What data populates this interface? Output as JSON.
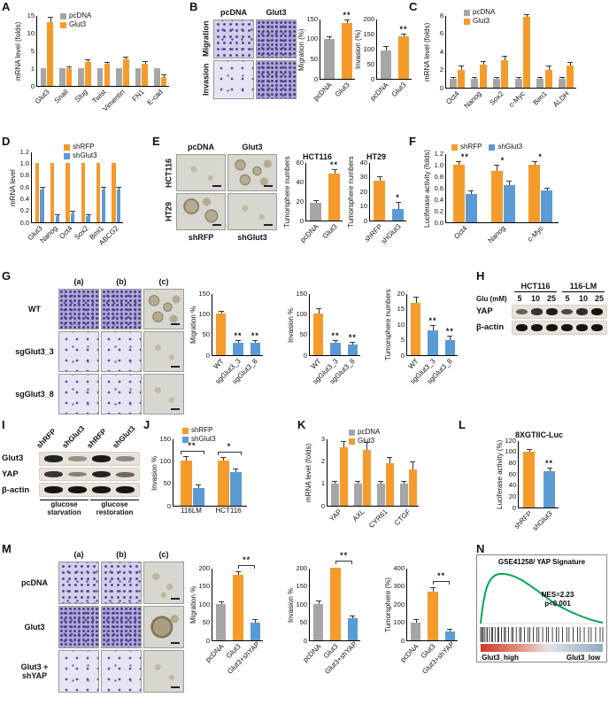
{
  "colors": {
    "gray": "#a6a6a6",
    "orange": "#F59B2B",
    "blue": "#5B9BD5",
    "green": "#00A651"
  },
  "panels": {
    "A": {
      "label": "A",
      "chart": {
        "type": "bar",
        "ylabel": "mRNA level (folds)",
        "yticks": [
          0,
          1,
          5,
          10,
          15
        ],
        "categories": [
          "Glut3",
          "Snail",
          "Slug",
          "Twist",
          "Vimentin",
          "FN1",
          "E-cad"
        ],
        "legend": true,
        "xrotate": 45,
        "series": [
          {
            "name": "pcDNA",
            "color": "#a6a6a6",
            "values": [
              1,
              1,
              1,
              1,
              1,
              1,
              1
            ],
            "errors": [
              0.05,
              0.05,
              0.05,
              0.05,
              0.05,
              0.05,
              0.05
            ]
          },
          {
            "name": "Glut3",
            "color": "#F59B2B",
            "values": [
              13,
              1,
              2.5,
              2,
              3,
              2,
              0.5
            ],
            "errors": [
              1.2,
              0.15,
              0.4,
              0.3,
              0.5,
              0.35,
              0.1
            ]
          }
        ]
      }
    },
    "B": {
      "label": "B",
      "images": {
        "col_labels": [
          "pcDNA",
          "Glut3"
        ],
        "row_labels": [
          "Migration",
          "Invasion"
        ]
      },
      "charts": [
        {
          "type": "bar",
          "ylabel": "Migration (%)",
          "yticks": [
            0,
            50,
            100,
            150
          ],
          "categories": [
            "pcDNA",
            "Glut3"
          ],
          "xrotate": 45,
          "colors": [
            "#a6a6a6",
            "#F59B2B"
          ],
          "values": [
            100,
            138
          ],
          "errors": [
            4,
            7
          ],
          "sig": [
            "",
            "**"
          ]
        },
        {
          "type": "bar",
          "ylabel": "Invasion (%)",
          "yticks": [
            0,
            50,
            100,
            150,
            200
          ],
          "categories": [
            "pcDNA",
            "Glut3"
          ],
          "xrotate": 45,
          "colors": [
            "#a6a6a6",
            "#F59B2B"
          ],
          "values": [
            95,
            140
          ],
          "errors": [
            12,
            8
          ],
          "sig": [
            "",
            "**"
          ]
        }
      ]
    },
    "C": {
      "label": "C",
      "chart": {
        "type": "bar",
        "ylabel": "mRNA level (folds)",
        "yticks": [
          0,
          2,
          4,
          6,
          8
        ],
        "categories": [
          "Oct4",
          "Nanog",
          "Sox2",
          "c-Myc",
          "Bim1",
          "ALDH"
        ],
        "legend": true,
        "xrotate": 45,
        "series": [
          {
            "name": "pcDNA",
            "color": "#a6a6a6",
            "values": [
              1,
              1,
              1,
              1,
              1,
              1
            ],
            "errors": [
              0.08,
              0.08,
              0.08,
              0.08,
              0.08,
              0.08
            ]
          },
          {
            "name": "Glut3",
            "color": "#F59B2B",
            "values": [
              2,
              2.5,
              3,
              7.8,
              2,
              2.4
            ],
            "errors": [
              0.3,
              0.3,
              0.4,
              0.5,
              0.3,
              0.3
            ]
          }
        ]
      }
    },
    "D": {
      "label": "D",
      "chart": {
        "type": "bar",
        "ylabel": "mRNA level",
        "yticks": [
          0,
          0.2,
          0.4,
          0.6,
          0.8,
          1,
          1.2
        ],
        "ytick_labels": [
          "0.0",
          "0.2",
          "0.4",
          "0.6",
          "0.8",
          "1.0",
          "1.2"
        ],
        "categories": [
          "Glut3",
          "Nanog",
          "Oct4",
          "Sox2",
          "Bmi1",
          "ABCG2"
        ],
        "legend": true,
        "xrotate": 45,
        "series": [
          {
            "name": "shRFP",
            "color": "#F59B2B",
            "values": [
              1,
              1,
              1,
              1,
              1,
              1
            ],
            "errors": [
              0,
              0,
              0,
              0,
              0,
              0
            ]
          },
          {
            "name": "shGlut3",
            "color": "#5B9BD5",
            "values": [
              0.55,
              0.1,
              0.15,
              0.1,
              0.55,
              0.55
            ],
            "errors": [
              0.04,
              0.02,
              0.03,
              0.02,
              0.04,
              0.04
            ]
          }
        ]
      }
    },
    "E": {
      "label": "E",
      "images": {
        "top_labels": [
          "pcDNA",
          "Glut3"
        ],
        "row_labels": [
          "HCT116",
          "HT29"
        ],
        "bottom_labels": [
          "shRFP",
          "shGlut3"
        ]
      },
      "charts": [
        {
          "type": "bar",
          "title": "HCT116",
          "ylabel": "Tumorsphere numbers",
          "yticks": [
            0,
            20,
            40,
            60
          ],
          "categories": [
            "pcDNA",
            "Glut3"
          ],
          "xrotate": 45,
          "colors": [
            "#a6a6a6",
            "#F59B2B"
          ],
          "values": [
            18,
            48
          ],
          "errors": [
            2,
            4
          ],
          "sig": [
            "",
            "**"
          ]
        },
        {
          "type": "bar",
          "title": "HT29",
          "ylabel": "Tumorsphere numbers",
          "yticks": [
            0,
            10,
            20,
            30,
            40
          ],
          "categories": [
            "shRFP",
            "shGlut3"
          ],
          "xrotate": 45,
          "colors": [
            "#F59B2B",
            "#5B9BD5"
          ],
          "values": [
            27,
            8
          ],
          "errors": [
            3,
            4
          ],
          "sig": [
            "",
            "*"
          ]
        }
      ]
    },
    "F": {
      "label": "F",
      "chart": {
        "type": "bar",
        "ylabel": "Luciferase activity (folds)",
        "yticks": [
          0,
          0.2,
          0.4,
          0.6,
          0.8,
          1,
          1.2
        ],
        "ytick_labels": [
          "0.0",
          "0.2",
          "0.4",
          "0.6",
          "0.8",
          "1.0",
          "1.2"
        ],
        "categories": [
          "Oct4",
          "Nanog",
          "c-Myc"
        ],
        "legend": true,
        "xrotate": 45,
        "sig": [
          "**",
          "*",
          "*"
        ],
        "series": [
          {
            "name": "shRFP",
            "color": "#F59B2B",
            "values": [
              1,
              0.9,
              1
            ],
            "errors": [
              0.05,
              0.08,
              0.05
            ]
          },
          {
            "name": "shGlut3",
            "color": "#5B9BD5",
            "values": [
              0.5,
              0.65,
              0.55
            ],
            "errors": [
              0.04,
              0.06,
              0.04
            ]
          }
        ]
      }
    },
    "G": {
      "label": "G",
      "images": {
        "col_labels": [
          "(a)",
          "(b)",
          "(c)"
        ],
        "row_labels": [
          "WT",
          "sgGlut3_3",
          "sgGlut3_8"
        ]
      },
      "charts": [
        {
          "type": "bar",
          "ylabel": "Migration %",
          "yticks": [
            0,
            50,
            100,
            150
          ],
          "categories": [
            "WT",
            "sgGlut3_3",
            "sgGlut3_8"
          ],
          "xrotate": 45,
          "colors": [
            "#F59B2B",
            "#5B9BD5",
            "#5B9BD5"
          ],
          "values": [
            100,
            30,
            30
          ],
          "errors": [
            5,
            4,
            4
          ],
          "sig": [
            "",
            "**",
            "**"
          ]
        },
        {
          "type": "bar",
          "ylabel": "Invasion %",
          "yticks": [
            0,
            50,
            100,
            150
          ],
          "categories": [
            "WT",
            "sgGlut3_3",
            "sgGlut3_8"
          ],
          "xrotate": 45,
          "colors": [
            "#F59B2B",
            "#5B9BD5",
            "#5B9BD5"
          ],
          "values": [
            100,
            30,
            25
          ],
          "errors": [
            12,
            5,
            4
          ],
          "sig": [
            "",
            "**",
            "**"
          ]
        },
        {
          "type": "bar",
          "ylabel": "Tumorsphere numbers",
          "yticks": [
            0,
            5,
            10,
            15,
            20
          ],
          "categories": [
            "WT",
            "sgGlut3_3",
            "sgGlut3_8"
          ],
          "xrotate": 45,
          "colors": [
            "#F59B2B",
            "#5B9BD5",
            "#5B9BD5"
          ],
          "values": [
            17,
            8,
            5
          ],
          "errors": [
            1.5,
            1.5,
            1
          ],
          "sig": [
            "",
            "**",
            "**"
          ]
        }
      ]
    },
    "H": {
      "label": "H",
      "blot": {
        "group_labels": [
          "HCT116",
          "116-LM"
        ],
        "lane_header": "Glu (mM)",
        "lane_values": [
          "5",
          "10",
          "25",
          "5",
          "10",
          "25"
        ],
        "rows": [
          {
            "name": "YAP",
            "bands": [
              0.55,
              0.8,
              0.95,
              0.7,
              0.85,
              1
            ]
          },
          {
            "name": "β-actin",
            "bands": [
              1,
              1,
              1,
              1,
              1,
              1
            ]
          }
        ]
      }
    },
    "I": {
      "label": "I",
      "blot": {
        "lane_labels": [
          "shRFP",
          "shGlut3",
          "shRFP",
          "shGlut3"
        ],
        "rows": [
          {
            "name": "Glut3",
            "bands": [
              0.9,
              0.25,
              0.95,
              0.3
            ]
          },
          {
            "name": "YAP",
            "bands": [
              0.8,
              0.35,
              0.9,
              0.5
            ]
          },
          {
            "name": "β-actin",
            "bands": [
              1,
              1,
              1,
              1
            ]
          }
        ],
        "group_labels": [
          "glucose starvation",
          "glucose restoration"
        ]
      }
    },
    "J": {
      "label": "J",
      "chart": {
        "type": "bar",
        "ylabel": "Invasion %",
        "yticks": [
          0,
          50,
          100,
          150
        ],
        "categories": [
          "116LM",
          "HCT116"
        ],
        "legend": true,
        "group_brackets": [
          "**",
          "*"
        ],
        "series": [
          {
            "name": "shRFP",
            "color": "#F59B2B",
            "values": [
              100,
              100
            ],
            "errors": [
              8,
              6
            ]
          },
          {
            "name": "shGlut3",
            "color": "#5B9BD5",
            "values": [
              40,
              75
            ],
            "errors": [
              5,
              6
            ]
          }
        ]
      }
    },
    "K": {
      "label": "K",
      "chart": {
        "type": "bar",
        "ylabel": "mRNA level (folds)",
        "yticks": [
          0,
          1,
          2,
          3
        ],
        "categories": [
          "YAP",
          "AXL",
          "CYR61",
          "CTGF"
        ],
        "legend": true,
        "xrotate": 45,
        "series": [
          {
            "name": "pcDNA",
            "color": "#a6a6a6",
            "values": [
              1,
              1,
              1,
              1
            ],
            "errors": [
              0.06,
              0.06,
              0.06,
              0.06
            ]
          },
          {
            "name": "Glut3",
            "color": "#F59B2B",
            "values": [
              2.6,
              2.5,
              1.9,
              1.6
            ],
            "errors": [
              0.25,
              0.3,
              0.25,
              0.35
            ]
          }
        ]
      }
    },
    "L": {
      "label": "L",
      "chart": {
        "type": "bar",
        "title": "8XGTIIC-Luc",
        "ylabel": "Luciferase activity (%)",
        "yticks": [
          0,
          20,
          40,
          60,
          80,
          100,
          120
        ],
        "categories": [
          "shRFP",
          "shGlut3"
        ],
        "xrotate": 45,
        "colors": [
          "#F59B2B",
          "#5B9BD5"
        ],
        "values": [
          100,
          65
        ],
        "errors": [
          3,
          4
        ],
        "sig": [
          "",
          "**"
        ]
      }
    },
    "M": {
      "label": "M",
      "images": {
        "col_labels": [
          "(a)",
          "(b)",
          "(c)"
        ],
        "row_labels": [
          "pcDNA",
          "Glut3",
          "Glut3 + shYAP"
        ]
      },
      "charts": [
        {
          "type": "bar",
          "ylabel": "Migration %",
          "yticks": [
            0,
            50,
            100,
            150,
            200
          ],
          "categories": [
            "pcDNA",
            "Glut3",
            "Glut3+shYAP"
          ],
          "xrotate": 45,
          "colors": [
            "#a6a6a6",
            "#F59B2B",
            "#5B9BD5"
          ],
          "values": [
            100,
            180,
            50
          ],
          "errors": [
            6,
            8,
            5
          ],
          "bracket": {
            "i1": 1,
            "i2": 2,
            "text": "**"
          }
        },
        {
          "type": "bar",
          "ylabel": "Invasion %",
          "yticks": [
            0,
            50,
            100,
            150,
            200
          ],
          "categories": [
            "pcDNA",
            "Glut3",
            "Glut3+shYAP"
          ],
          "xrotate": 45,
          "colors": [
            "#a6a6a6",
            "#F59B2B",
            "#5B9BD5"
          ],
          "values": [
            100,
            200,
            60
          ],
          "errors": [
            8,
            10,
            6
          ],
          "bracket": {
            "i1": 1,
            "i2": 2,
            "text": "**"
          }
        },
        {
          "type": "bar",
          "ylabel": "Tumorsphere (%)",
          "yticks": [
            0,
            100,
            200,
            300,
            400
          ],
          "categories": [
            "pcDNA",
            "Glut3",
            "Glut3+shYAP"
          ],
          "xrotate": 45,
          "colors": [
            "#a6a6a6",
            "#F59B2B",
            "#5B9BD5"
          ],
          "values": [
            100,
            270,
            50
          ],
          "errors": [
            10,
            20,
            8
          ],
          "bracket": {
            "i1": 1,
            "i2": 2,
            "text": "**"
          }
        }
      ]
    },
    "N": {
      "label": "N",
      "gsea": {
        "title": "GSE41258/ YAP Signature",
        "nes": "NES=2.23",
        "pval": "p<0.001",
        "x_left": "Glut3_high",
        "x_right": "Glut3_low",
        "curve_color": "#00A651"
      }
    }
  }
}
